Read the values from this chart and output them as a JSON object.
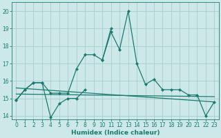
{
  "x": [
    0,
    1,
    2,
    3,
    4,
    5,
    6,
    7,
    8,
    9,
    10,
    11,
    12,
    13,
    14,
    15,
    16,
    17,
    18,
    19,
    20,
    21,
    22,
    23
  ],
  "line1": [
    14.9,
    15.5,
    15.9,
    15.9,
    13.9,
    14.7,
    15.0,
    15.0,
    15.5,
    null,
    17.2,
    18.8,
    17.8,
    20.0,
    17.0,
    15.8,
    16.1,
    15.5,
    15.5,
    15.5,
    15.2,
    15.2,
    14.0,
    14.8
  ],
  "line2": [
    14.9,
    15.5,
    15.9,
    15.9,
    15.3,
    15.3,
    15.3,
    16.7,
    17.5,
    17.5,
    17.2,
    19.0,
    null,
    null,
    null,
    null,
    null,
    null,
    null,
    null,
    null,
    null,
    null,
    null
  ],
  "line3_x": [
    0,
    23
  ],
  "line3_y": [
    15.6,
    14.8
  ],
  "line4_x": [
    0,
    23
  ],
  "line4_y": [
    15.25,
    15.1
  ],
  "color": "#1a7a6e",
  "bg_color": "#cce8e8",
  "grid_color": "#aacccc",
  "xlabel": "Humidex (Indice chaleur)",
  "ylim": [
    13.8,
    20.5
  ],
  "xlim": [
    -0.5,
    23.5
  ],
  "yticks": [
    14,
    15,
    16,
    17,
    18,
    19,
    20
  ],
  "xticks": [
    0,
    1,
    2,
    3,
    4,
    5,
    6,
    7,
    8,
    9,
    10,
    11,
    12,
    13,
    14,
    15,
    16,
    17,
    18,
    19,
    20,
    21,
    22,
    23
  ],
  "marker": "D",
  "markersize": 2.0,
  "linewidth": 0.9,
  "tick_fontsize": 5.5,
  "xlabel_fontsize": 6.5
}
